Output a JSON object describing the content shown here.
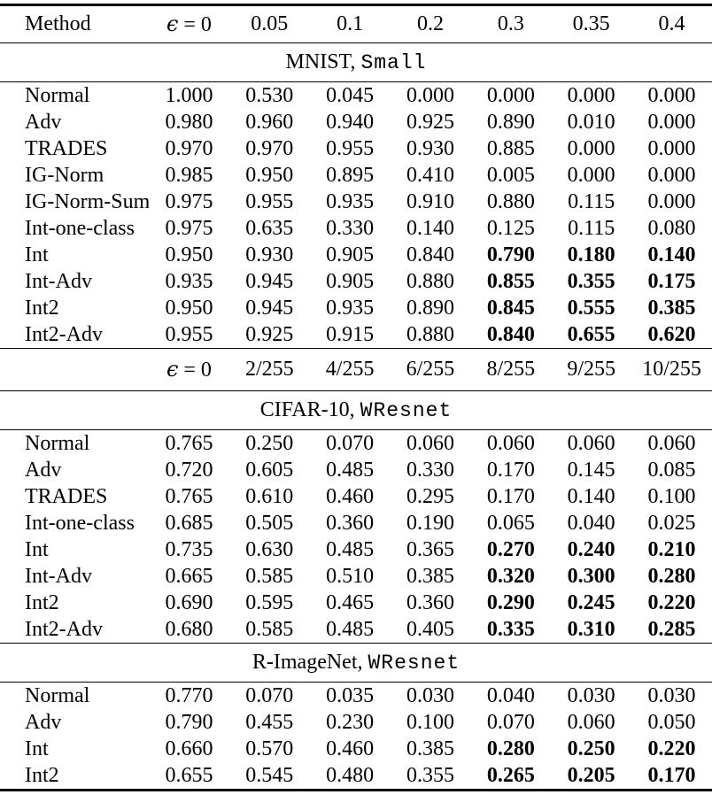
{
  "page": {
    "background_color": "#ffffff",
    "text_color": "#000000"
  },
  "table": {
    "header_row_1": {
      "method_label": "Method",
      "eps_label": "ϵ = 0",
      "epsilons": [
        "0.05",
        "0.1",
        "0.2",
        "0.3",
        "0.35",
        "0.4"
      ]
    },
    "header_row_2": {
      "method_label": "",
      "eps_label": "ϵ = 0",
      "epsilons": [
        "2/255",
        "4/255",
        "6/255",
        "8/255",
        "9/255",
        "10/255"
      ]
    },
    "sections": [
      {
        "dataset": "MNIST,",
        "model": "Small",
        "rows": [
          {
            "method": "Normal",
            "values": [
              "1.000",
              "0.530",
              "0.045",
              "0.000",
              "0.000",
              "0.000",
              "0.000"
            ],
            "bold": [
              0,
              0,
              0,
              0,
              0,
              0,
              0
            ]
          },
          {
            "method": "Adv",
            "values": [
              "0.980",
              "0.960",
              "0.940",
              "0.925",
              "0.890",
              "0.010",
              "0.000"
            ],
            "bold": [
              0,
              0,
              0,
              0,
              0,
              0,
              0
            ]
          },
          {
            "method": "TRADES",
            "values": [
              "0.970",
              "0.970",
              "0.955",
              "0.930",
              "0.885",
              "0.000",
              "0.000"
            ],
            "bold": [
              0,
              0,
              0,
              0,
              0,
              0,
              0
            ]
          },
          {
            "method": "IG-Norm",
            "values": [
              "0.985",
              "0.950",
              "0.895",
              "0.410",
              "0.005",
              "0.000",
              "0.000"
            ],
            "bold": [
              0,
              0,
              0,
              0,
              0,
              0,
              0
            ]
          },
          {
            "method": "IG-Norm-Sum",
            "values": [
              "0.975",
              "0.955",
              "0.935",
              "0.910",
              "0.880",
              "0.115",
              "0.000"
            ],
            "bold": [
              0,
              0,
              0,
              0,
              0,
              0,
              0
            ]
          },
          {
            "method": "Int-one-class",
            "values": [
              "0.975",
              "0.635",
              "0.330",
              "0.140",
              "0.125",
              "0.115",
              "0.080"
            ],
            "bold": [
              0,
              0,
              0,
              0,
              0,
              0,
              0
            ]
          },
          {
            "method": "Int",
            "values": [
              "0.950",
              "0.930",
              "0.905",
              "0.840",
              "0.790",
              "0.180",
              "0.140"
            ],
            "bold": [
              0,
              0,
              0,
              0,
              1,
              1,
              1
            ]
          },
          {
            "method": "Int-Adv",
            "values": [
              "0.935",
              "0.945",
              "0.905",
              "0.880",
              "0.855",
              "0.355",
              "0.175"
            ],
            "bold": [
              0,
              0,
              0,
              0,
              1,
              1,
              1
            ]
          },
          {
            "method": "Int2",
            "values": [
              "0.950",
              "0.945",
              "0.935",
              "0.890",
              "0.845",
              "0.555",
              "0.385"
            ],
            "bold": [
              0,
              0,
              0,
              0,
              1,
              1,
              1
            ]
          },
          {
            "method": "Int2-Adv",
            "values": [
              "0.955",
              "0.925",
              "0.915",
              "0.880",
              "0.840",
              "0.655",
              "0.620"
            ],
            "bold": [
              0,
              0,
              0,
              0,
              1,
              1,
              1
            ]
          }
        ]
      },
      {
        "dataset": "CIFAR-10,",
        "model": "WResnet",
        "rows": [
          {
            "method": "Normal",
            "values": [
              "0.765",
              "0.250",
              "0.070",
              "0.060",
              "0.060",
              "0.060",
              "0.060"
            ],
            "bold": [
              0,
              0,
              0,
              0,
              0,
              0,
              0
            ]
          },
          {
            "method": "Adv",
            "values": [
              "0.720",
              "0.605",
              "0.485",
              "0.330",
              "0.170",
              "0.145",
              "0.085"
            ],
            "bold": [
              0,
              0,
              0,
              0,
              0,
              0,
              0
            ]
          },
          {
            "method": "TRADES",
            "values": [
              "0.765",
              "0.610",
              "0.460",
              "0.295",
              "0.170",
              "0.140",
              "0.100"
            ],
            "bold": [
              0,
              0,
              0,
              0,
              0,
              0,
              0
            ]
          },
          {
            "method": "Int-one-class",
            "values": [
              "0.685",
              "0.505",
              "0.360",
              "0.190",
              "0.065",
              "0.040",
              "0.025"
            ],
            "bold": [
              0,
              0,
              0,
              0,
              0,
              0,
              0
            ]
          },
          {
            "method": "Int",
            "values": [
              "0.735",
              "0.630",
              "0.485",
              "0.365",
              "0.270",
              "0.240",
              "0.210"
            ],
            "bold": [
              0,
              0,
              0,
              0,
              1,
              1,
              1
            ]
          },
          {
            "method": "Int-Adv",
            "values": [
              "0.665",
              "0.585",
              "0.510",
              "0.385",
              "0.320",
              "0.300",
              "0.280"
            ],
            "bold": [
              0,
              0,
              0,
              0,
              1,
              1,
              1
            ]
          },
          {
            "method": "Int2",
            "values": [
              "0.690",
              "0.595",
              "0.465",
              "0.360",
              "0.290",
              "0.245",
              "0.220"
            ],
            "bold": [
              0,
              0,
              0,
              0,
              1,
              1,
              1
            ]
          },
          {
            "method": "Int2-Adv",
            "values": [
              "0.680",
              "0.585",
              "0.485",
              "0.405",
              "0.335",
              "0.310",
              "0.285"
            ],
            "bold": [
              0,
              0,
              0,
              0,
              1,
              1,
              1
            ]
          }
        ]
      },
      {
        "dataset": "R-ImageNet,",
        "model": "WResnet",
        "rows": [
          {
            "method": "Normal",
            "values": [
              "0.770",
              "0.070",
              "0.035",
              "0.030",
              "0.040",
              "0.030",
              "0.030"
            ],
            "bold": [
              0,
              0,
              0,
              0,
              0,
              0,
              0
            ]
          },
          {
            "method": "Adv",
            "values": [
              "0.790",
              "0.455",
              "0.230",
              "0.100",
              "0.070",
              "0.060",
              "0.050"
            ],
            "bold": [
              0,
              0,
              0,
              0,
              0,
              0,
              0
            ]
          },
          {
            "method": "Int",
            "values": [
              "0.660",
              "0.570",
              "0.460",
              "0.385",
              "0.280",
              "0.250",
              "0.220"
            ],
            "bold": [
              0,
              0,
              0,
              0,
              1,
              1,
              1
            ]
          },
          {
            "method": "Int2",
            "values": [
              "0.655",
              "0.545",
              "0.480",
              "0.355",
              "0.265",
              "0.205",
              "0.170"
            ],
            "bold": [
              0,
              0,
              0,
              0,
              1,
              1,
              1
            ]
          }
        ]
      }
    ]
  }
}
